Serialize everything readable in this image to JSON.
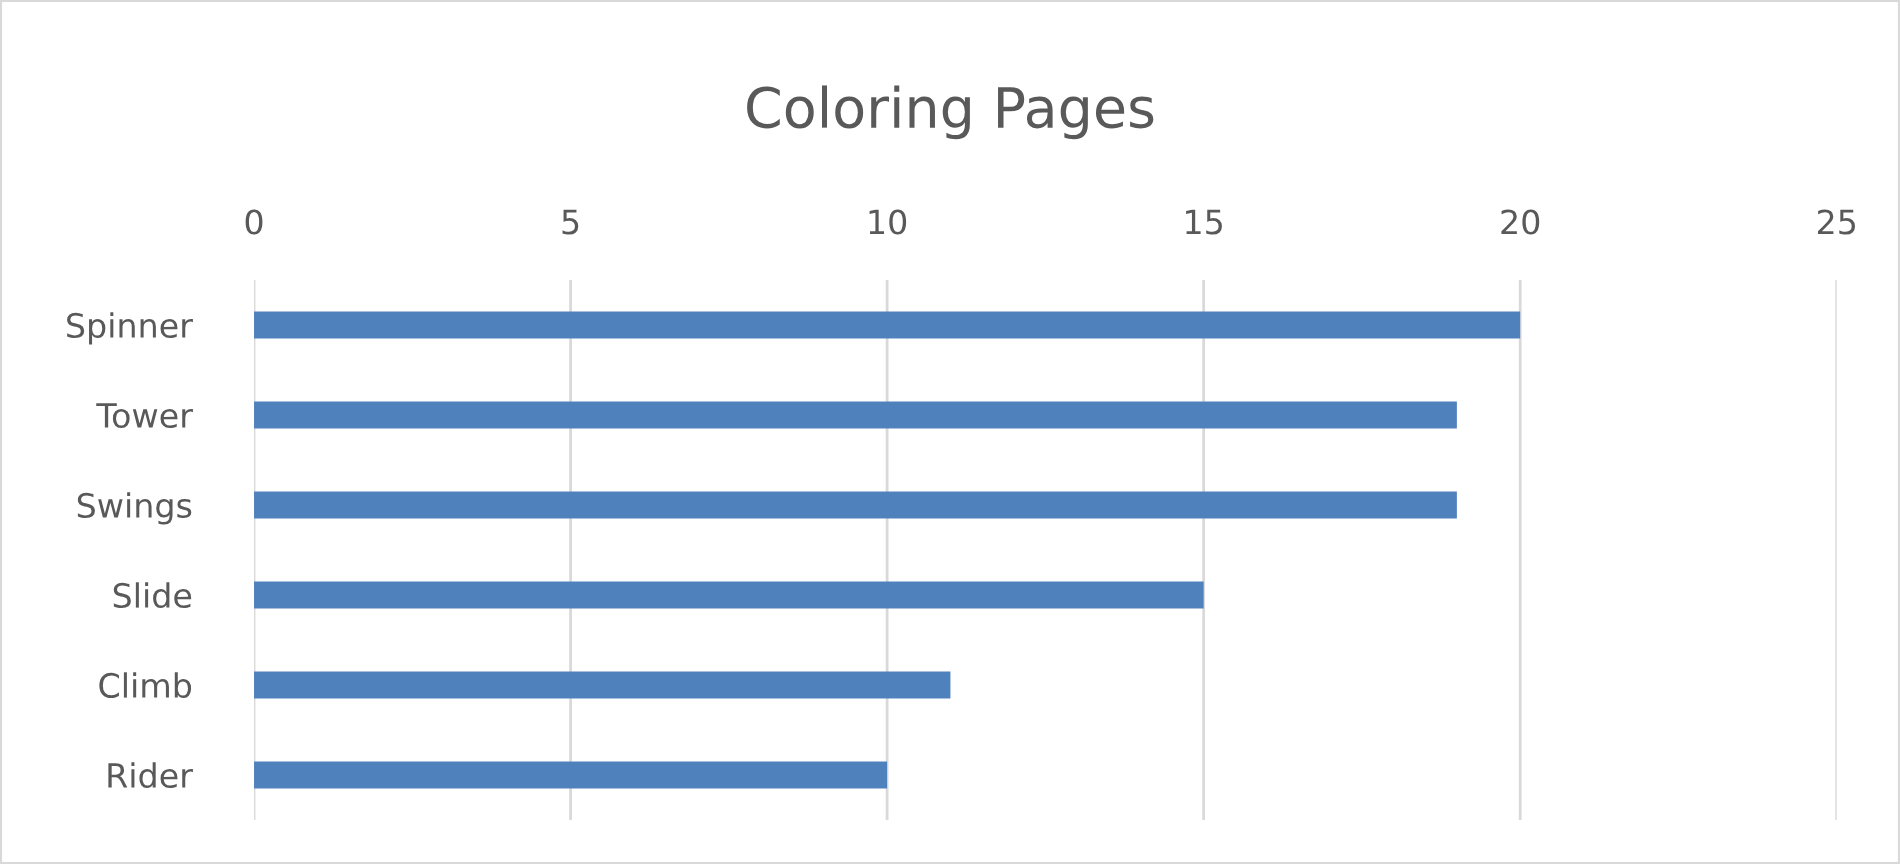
{
  "chart_data": {
    "type": "bar",
    "orientation": "horizontal",
    "title": "Coloring Pages",
    "categories": [
      "Spinner",
      "Tower",
      "Swings",
      "Slide",
      "Climb",
      "Rider"
    ],
    "values": [
      20,
      19,
      19,
      15,
      11,
      10
    ],
    "color": "#4f81bd",
    "xlim": [
      0,
      25
    ],
    "xticks": [
      0,
      5,
      10,
      15,
      20,
      25
    ],
    "grid": "x",
    "legend": false
  }
}
